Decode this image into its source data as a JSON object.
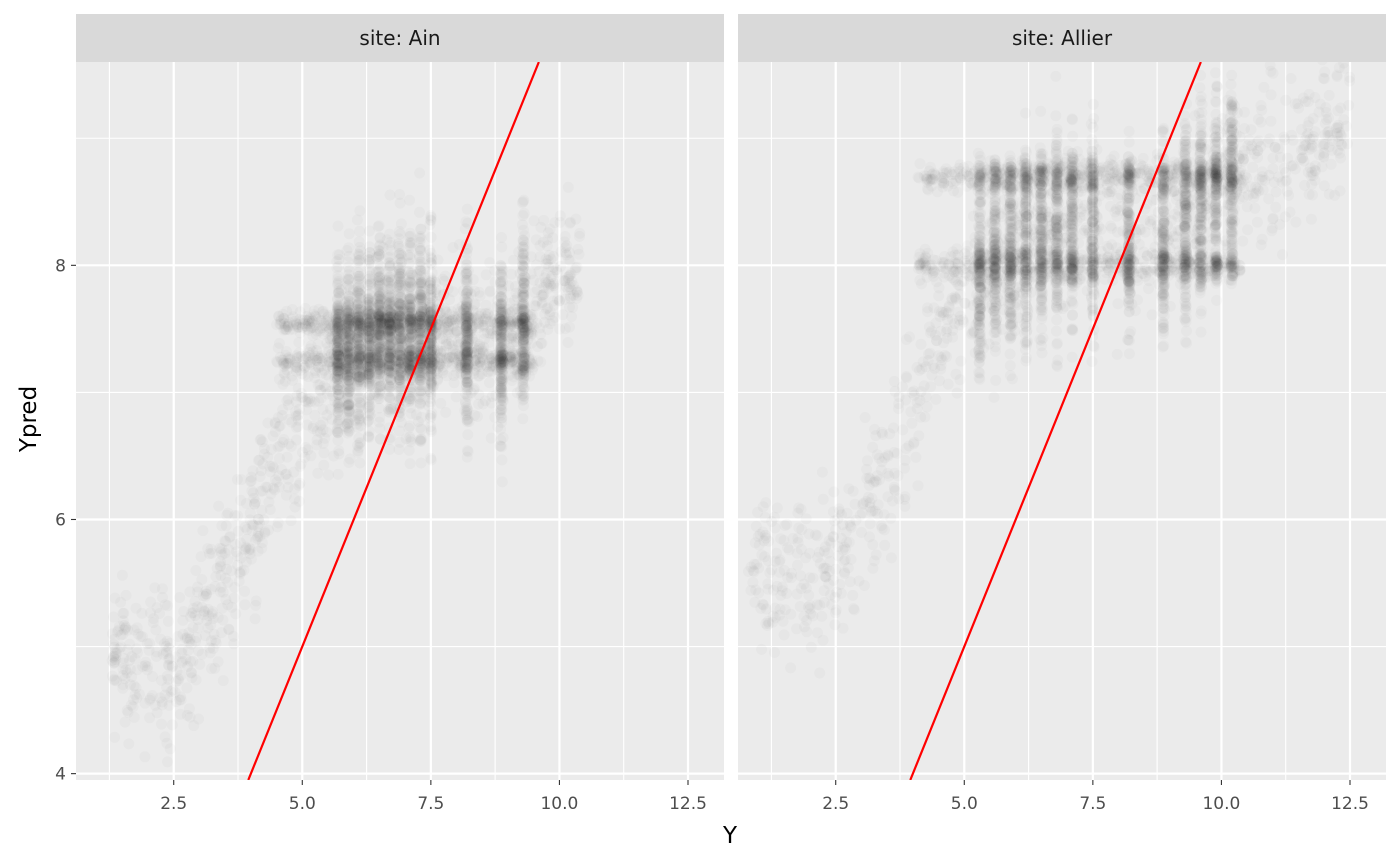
{
  "chart_data": {
    "type": "scatter",
    "xlabel": "Y",
    "ylabel": "Ypred",
    "xlim": [
      0.6,
      13.2
    ],
    "ylim": [
      3.95,
      9.6
    ],
    "x_major_ticks": [
      2.5,
      5.0,
      7.5,
      10.0,
      12.5
    ],
    "x_tick_labels": [
      "2.5",
      "5.0",
      "7.5",
      "10.0",
      "12.5"
    ],
    "y_major_ticks": [
      4,
      6,
      8
    ],
    "y_tick_labels": [
      "4",
      "6",
      "8"
    ],
    "grid": true,
    "point_color": "#1e1e1e",
    "point_alpha": 0.025,
    "reference_line": {
      "type": "identity",
      "slope": 1,
      "intercept": 0,
      "color": "#ff0000"
    },
    "panels": [
      {
        "strip_label": "site: Ain",
        "dense_columns_x": [
          5.7,
          5.9,
          6.1,
          6.3,
          6.5,
          6.7,
          6.9,
          7.1,
          7.3,
          7.5,
          8.2,
          8.87,
          9.3
        ],
        "bands_y": [
          7.25,
          7.55
        ],
        "point_cloud": [
          {
            "x": 2.8,
            "y": 4.9
          },
          {
            "x": 3.3,
            "y": 5.4
          },
          {
            "x": 4.0,
            "y": 5.9
          },
          {
            "x": 4.5,
            "y": 6.4
          },
          {
            "x": 5.0,
            "y": 6.8
          },
          {
            "x": 5.8,
            "y": 7.3
          },
          {
            "x": 6.5,
            "y": 7.5
          },
          {
            "x": 7.5,
            "y": 7.5
          },
          {
            "x": 8.87,
            "y": 7.4
          },
          {
            "x": 9.6,
            "y": 7.8
          },
          {
            "x": 10.4,
            "y": 8.0
          }
        ]
      },
      {
        "strip_label": "site: Allier",
        "dense_columns_x": [
          5.3,
          5.6,
          5.9,
          6.2,
          6.5,
          6.8,
          7.1,
          7.5,
          8.2,
          8.87,
          9.3,
          9.6,
          9.9,
          10.2
        ],
        "bands_y": [
          8.0,
          8.7
        ],
        "point_cloud": [
          {
            "x": 2.3,
            "y": 5.6
          },
          {
            "x": 3.0,
            "y": 6.0
          },
          {
            "x": 3.5,
            "y": 6.4
          },
          {
            "x": 4.0,
            "y": 6.9
          },
          {
            "x": 4.5,
            "y": 7.5
          },
          {
            "x": 5.5,
            "y": 8.0
          },
          {
            "x": 7.0,
            "y": 8.3
          },
          {
            "x": 8.87,
            "y": 8.2
          },
          {
            "x": 10.0,
            "y": 8.7
          },
          {
            "x": 11.6,
            "y": 8.9
          },
          {
            "x": 12.5,
            "y": 9.2
          }
        ]
      }
    ]
  }
}
